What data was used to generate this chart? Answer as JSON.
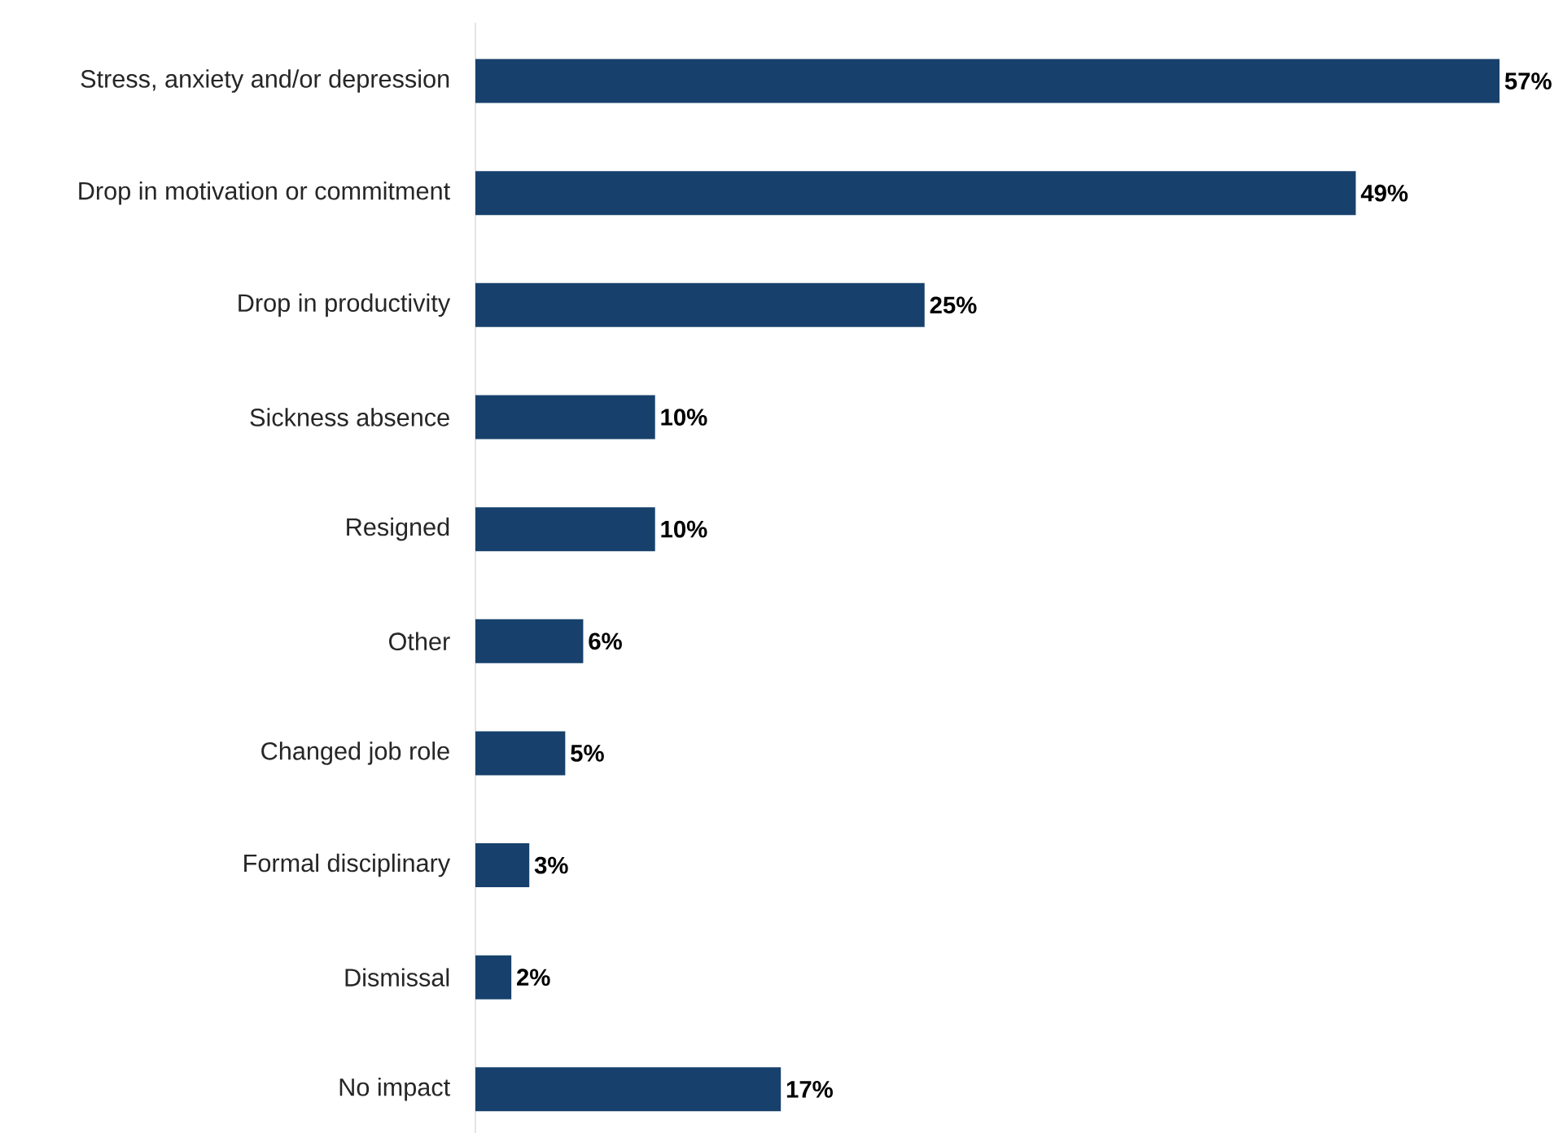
{
  "chart_data": {
    "type": "bar",
    "orientation": "horizontal",
    "categories": [
      "Stress, anxiety and/or depression",
      "Drop in motivation or commitment",
      "Drop in productivity",
      "Sickness absence",
      "Resigned",
      "Other",
      "Changed job role",
      "Formal disciplinary",
      "Dismissal",
      "No impact"
    ],
    "values": [
      57,
      49,
      25,
      10,
      10,
      6,
      5,
      3,
      2,
      17
    ],
    "value_labels": [
      "57%",
      "49%",
      "25%",
      "10%",
      "10%",
      "6%",
      "5%",
      "3%",
      "2%",
      "17%"
    ],
    "color": "#17416c",
    "tick_labels": "y"
  }
}
